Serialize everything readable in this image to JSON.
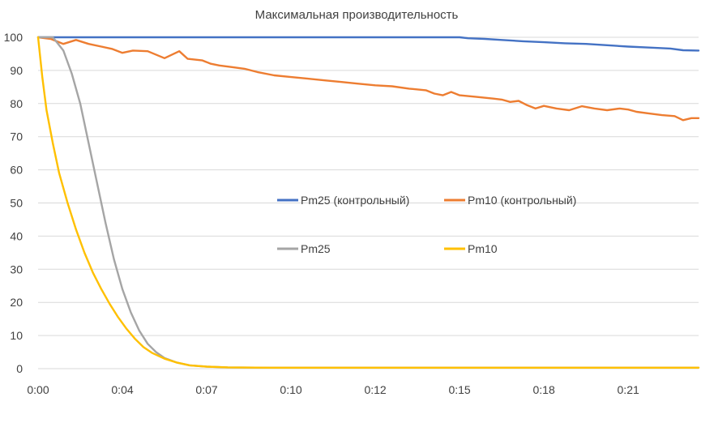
{
  "chart_data": {
    "type": "line",
    "title": "Максимальная производительность",
    "xlabel": "",
    "ylabel": "",
    "ylim": [
      0,
      100
    ],
    "xlim": [
      0,
      1567
    ],
    "y_ticks": [
      0,
      10,
      20,
      30,
      40,
      50,
      60,
      70,
      80,
      90,
      100
    ],
    "x_ticks": [
      {
        "value": 0,
        "label": "0:00"
      },
      {
        "value": 200,
        "label": "0:04"
      },
      {
        "value": 400,
        "label": "0:07"
      },
      {
        "value": 600,
        "label": "0:10"
      },
      {
        "value": 800,
        "label": "0:12"
      },
      {
        "value": 1000,
        "label": "0:15"
      },
      {
        "value": 1200,
        "label": "0:18"
      },
      {
        "value": 1400,
        "label": "0:21"
      }
    ],
    "grid": true,
    "legend_position": "center",
    "series": [
      {
        "name": "Pm25 (контрольный)",
        "color": "#4472c4",
        "points": [
          [
            0,
            100
          ],
          [
            1000,
            100
          ],
          [
            1020,
            99.7
          ],
          [
            1060,
            99.5
          ],
          [
            1100,
            99.2
          ],
          [
            1150,
            98.8
          ],
          [
            1200,
            98.5
          ],
          [
            1250,
            98.2
          ],
          [
            1300,
            98.0
          ],
          [
            1350,
            97.6
          ],
          [
            1400,
            97.2
          ],
          [
            1450,
            96.9
          ],
          [
            1500,
            96.6
          ],
          [
            1530,
            96.1
          ],
          [
            1567,
            96.0
          ]
        ]
      },
      {
        "name": "Pm10  (контрольный)",
        "color": "#ed7d31",
        "points": [
          [
            0,
            100
          ],
          [
            30,
            99.5
          ],
          [
            60,
            98.0
          ],
          [
            90,
            99.2
          ],
          [
            120,
            98.0
          ],
          [
            150,
            97.2
          ],
          [
            175,
            96.5
          ],
          [
            200,
            95.3
          ],
          [
            225,
            96.0
          ],
          [
            260,
            95.8
          ],
          [
            300,
            93.7
          ],
          [
            335,
            95.8
          ],
          [
            355,
            93.5
          ],
          [
            390,
            93.0
          ],
          [
            410,
            92.0
          ],
          [
            430,
            91.5
          ],
          [
            460,
            91.0
          ],
          [
            490,
            90.5
          ],
          [
            520,
            89.5
          ],
          [
            560,
            88.5
          ],
          [
            600,
            88.0
          ],
          [
            640,
            87.5
          ],
          [
            680,
            87.0
          ],
          [
            720,
            86.5
          ],
          [
            760,
            86.0
          ],
          [
            800,
            85.5
          ],
          [
            840,
            85.2
          ],
          [
            880,
            84.5
          ],
          [
            920,
            84.0
          ],
          [
            940,
            83.0
          ],
          [
            960,
            82.5
          ],
          [
            980,
            83.5
          ],
          [
            1000,
            82.5
          ],
          [
            1040,
            82.0
          ],
          [
            1080,
            81.5
          ],
          [
            1100,
            81.2
          ],
          [
            1120,
            80.5
          ],
          [
            1140,
            80.8
          ],
          [
            1160,
            79.5
          ],
          [
            1180,
            78.5
          ],
          [
            1200,
            79.3
          ],
          [
            1230,
            78.5
          ],
          [
            1260,
            78.0
          ],
          [
            1290,
            79.2
          ],
          [
            1320,
            78.5
          ],
          [
            1350,
            78.0
          ],
          [
            1380,
            78.5
          ],
          [
            1400,
            78.2
          ],
          [
            1420,
            77.5
          ],
          [
            1450,
            77.0
          ],
          [
            1480,
            76.5
          ],
          [
            1510,
            76.2
          ],
          [
            1530,
            75.0
          ],
          [
            1550,
            75.6
          ],
          [
            1567,
            75.6
          ]
        ]
      },
      {
        "name": "Pm25",
        "color": "#a5a5a5",
        "points": [
          [
            0,
            100
          ],
          [
            35,
            100
          ],
          [
            60,
            96.0
          ],
          [
            80,
            89.0
          ],
          [
            100,
            80.0
          ],
          [
            120,
            68.0
          ],
          [
            140,
            56.0
          ],
          [
            160,
            44.0
          ],
          [
            180,
            33.0
          ],
          [
            200,
            24.0
          ],
          [
            220,
            17.0
          ],
          [
            240,
            11.5
          ],
          [
            260,
            7.5
          ],
          [
            280,
            5.0
          ],
          [
            300,
            3.2
          ],
          [
            330,
            1.8
          ],
          [
            360,
            1.0
          ],
          [
            400,
            0.6
          ],
          [
            450,
            0.4
          ],
          [
            550,
            0.3
          ],
          [
            800,
            0.3
          ],
          [
            1567,
            0.3
          ]
        ]
      },
      {
        "name": "Pm10",
        "color": "#ffc000",
        "points": [
          [
            0,
            100
          ],
          [
            10,
            88.0
          ],
          [
            20,
            78.0
          ],
          [
            35,
            68.0
          ],
          [
            50,
            59.0
          ],
          [
            70,
            50.0
          ],
          [
            90,
            42.0
          ],
          [
            110,
            35.0
          ],
          [
            130,
            29.0
          ],
          [
            150,
            24.0
          ],
          [
            170,
            19.5
          ],
          [
            190,
            15.5
          ],
          [
            210,
            12.0
          ],
          [
            230,
            9.0
          ],
          [
            250,
            6.5
          ],
          [
            270,
            4.8
          ],
          [
            300,
            3.0
          ],
          [
            330,
            1.8
          ],
          [
            360,
            1.0
          ],
          [
            400,
            0.6
          ],
          [
            450,
            0.4
          ],
          [
            550,
            0.3
          ],
          [
            800,
            0.3
          ],
          [
            1567,
            0.3
          ]
        ]
      }
    ]
  }
}
